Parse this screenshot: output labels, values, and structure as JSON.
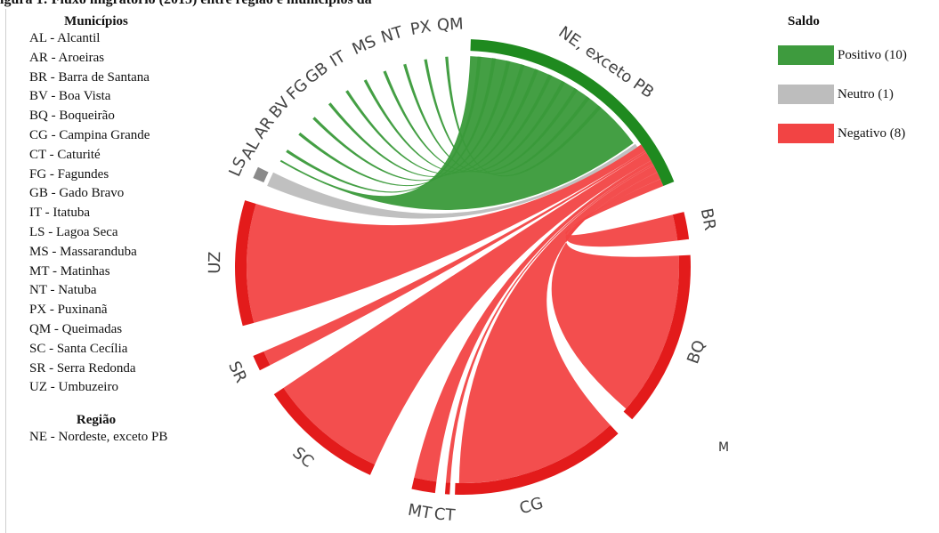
{
  "title_fragment": "igura 1: Fluxo migratório (2015) entre região e municípios da",
  "legend_municipios": {
    "title": "Municípios",
    "items": [
      "AL - Alcantil",
      "AR - Aroeiras",
      "BR - Barra de Santana",
      "BV - Boa Vista",
      "BQ - Boqueirão",
      "CG - Campina Grande",
      "CT - Caturité",
      "FG - Fagundes",
      "GB - Gado Bravo",
      "IT - Itatuba",
      "LS - Lagoa Seca",
      "MS - Massaranduba",
      "MT - Matinhas",
      "NT - Natuba",
      "PX - Puxinanã",
      "QM - Queimadas",
      "SC - Santa Cecília",
      "SR - Serra Redonda",
      "UZ - Umbuzeiro"
    ]
  },
  "legend_regiao": {
    "title": "Região",
    "items": [
      "NE - Nordeste, exceto PB"
    ]
  },
  "legend_saldo": {
    "title": "Saldo",
    "items": [
      {
        "label": "Positivo (10)",
        "color": "#3e9b3e"
      },
      {
        "label": "Neutro (1)",
        "color": "#bdbdbd"
      },
      {
        "label": "Negativo (8)",
        "color": "#f24444"
      }
    ]
  },
  "stray_mark": "M",
  "chart_data": {
    "type": "chord",
    "groups": [
      {
        "label": "NE, exceto PB",
        "saldo": "Positivo"
      },
      {
        "label": "BR",
        "saldo": "Negativo"
      },
      {
        "label": "BQ",
        "saldo": "Negativo"
      },
      {
        "label": "CG",
        "saldo": "Negativo"
      },
      {
        "label": "CT",
        "saldo": "Negativo"
      },
      {
        "label": "MT",
        "saldo": "Negativo"
      },
      {
        "label": "SC",
        "saldo": "Negativo"
      },
      {
        "label": "SR",
        "saldo": "Negativo"
      },
      {
        "label": "UZ",
        "saldo": "Negativo"
      },
      {
        "label": "LS",
        "saldo": "Neutro"
      },
      {
        "label": "AL",
        "saldo": "Positivo"
      },
      {
        "label": "AR",
        "saldo": "Positivo"
      },
      {
        "label": "BV",
        "saldo": "Positivo"
      },
      {
        "label": "FG",
        "saldo": "Positivo"
      },
      {
        "label": "GB",
        "saldo": "Positivo"
      },
      {
        "label": "IT",
        "saldo": "Positivo"
      },
      {
        "label": "MS",
        "saldo": "Positivo"
      },
      {
        "label": "NT",
        "saldo": "Positivo"
      },
      {
        "label": "PX",
        "saldo": "Positivo"
      },
      {
        "label": "QM",
        "saldo": "Positivo"
      }
    ]
  }
}
